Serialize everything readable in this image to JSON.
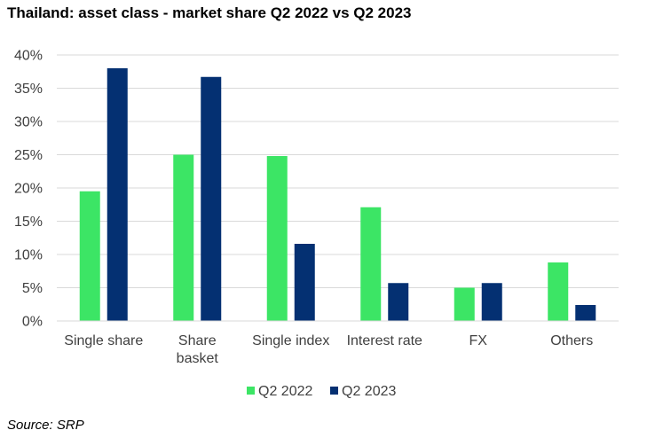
{
  "chart_data": {
    "type": "bar",
    "title": "Thailand: asset class - market share Q2 2022 vs Q2 2023",
    "categories": [
      [
        "Single share"
      ],
      [
        "Share",
        "basket"
      ],
      [
        "Single index"
      ],
      [
        "Interest rate"
      ],
      [
        "FX"
      ],
      [
        "Others"
      ]
    ],
    "series": [
      {
        "name": "Q2 2022",
        "color": "#3ce565",
        "values": [
          19.5,
          25.0,
          24.8,
          17.1,
          5.0,
          8.8
        ]
      },
      {
        "name": "Q2 2023",
        "color": "#043072",
        "values": [
          38.0,
          36.7,
          11.6,
          5.7,
          5.7,
          2.4
        ]
      }
    ],
    "yticks": [
      "0%",
      "5%",
      "10%",
      "15%",
      "20%",
      "25%",
      "30%",
      "35%",
      "40%"
    ],
    "ylim": [
      0,
      40
    ],
    "grid": true,
    "legend_position": "bottom",
    "xlabel": "",
    "ylabel": ""
  },
  "source": "Source: SRP"
}
